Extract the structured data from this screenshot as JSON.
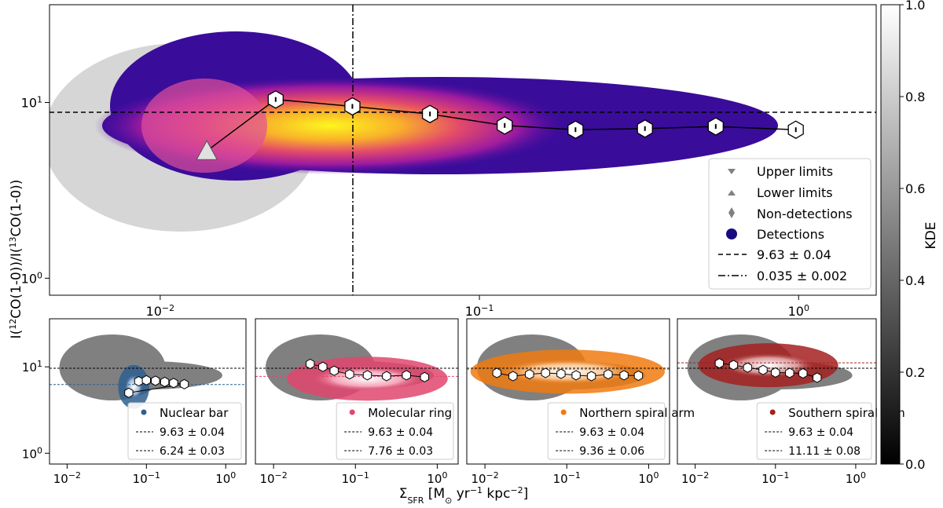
{
  "chart_data": [
    {
      "type": "scatter",
      "panel": "main",
      "xscale": "log",
      "yscale": "log",
      "xlim": [
        0.0045,
        1.75
      ],
      "ylim": [
        0.8,
        36
      ],
      "x_ticks": [
        {
          "v": 0.01,
          "label": "10^-2"
        },
        {
          "v": 0.1,
          "label": "10^-1"
        },
        {
          "v": 1,
          "label": "10^0"
        }
      ],
      "y_ticks": [
        {
          "v": 1,
          "label": "10^0"
        },
        {
          "v": 10,
          "label": "10^1"
        }
      ],
      "ylabel": "I(12CO(1-0))/I(13CO(1-0))",
      "hline": 9.63,
      "vline": 0.035,
      "binned_medians": [
        {
          "x": 0.014,
          "y": 5.3,
          "marker": "triangle"
        },
        {
          "x": 0.023,
          "y": 10.4
        },
        {
          "x": 0.04,
          "y": 9.5
        },
        {
          "x": 0.07,
          "y": 8.6
        },
        {
          "x": 0.12,
          "y": 7.4
        },
        {
          "x": 0.2,
          "y": 7.0
        },
        {
          "x": 0.33,
          "y": 7.1
        },
        {
          "x": 0.55,
          "y": 7.3
        },
        {
          "x": 0.98,
          "y": 7.0
        }
      ],
      "legend": {
        "position": "lower-right",
        "entries": [
          {
            "label": "Upper limits",
            "marker": "triangle-down",
            "color": "#808080"
          },
          {
            "label": "Lower limits",
            "marker": "triangle-up",
            "color": "#808080"
          },
          {
            "label": "Non-detections",
            "marker": "diamond",
            "color": "#808080"
          },
          {
            "label": "Detections",
            "marker": "circle",
            "color": "#1a0a82"
          },
          {
            "label": "9.63 ± 0.04",
            "line": "dashed"
          },
          {
            "label": "0.035 ± 0.002",
            "line": "dashdot"
          }
        ]
      }
    },
    {
      "type": "scatter",
      "panel": "sub",
      "region": "Nuclear bar",
      "color": "#2e5f90",
      "hline_global": 9.63,
      "hline_region": 6.24,
      "points": [
        [
          0.08,
          6.8
        ],
        [
          0.1,
          7.0
        ],
        [
          0.13,
          6.9
        ],
        [
          0.17,
          6.7
        ],
        [
          0.22,
          6.5
        ],
        [
          0.3,
          6.3
        ],
        [
          0.06,
          5.0
        ]
      ],
      "legend": [
        "Nuclear bar",
        "9.63 ± 0.04",
        "6.24 ± 0.03"
      ]
    },
    {
      "type": "scatter",
      "panel": "sub",
      "region": "Molecular ring",
      "color": "#e0476e",
      "hline_global": 9.63,
      "hline_region": 7.76,
      "points": [
        [
          0.028,
          10.8
        ],
        [
          0.04,
          10.0
        ],
        [
          0.055,
          9.0
        ],
        [
          0.085,
          8.2
        ],
        [
          0.14,
          8.0
        ],
        [
          0.24,
          7.8
        ],
        [
          0.42,
          8.0
        ],
        [
          0.7,
          7.6
        ]
      ],
      "legend": [
        "Molecular ring",
        "9.63 ± 0.04",
        "7.76 ± 0.03"
      ]
    },
    {
      "type": "scatter",
      "panel": "sub",
      "region": "Northern spiral arm",
      "color": "#f07a10",
      "hline_global": 9.63,
      "hline_region": 9.36,
      "points": [
        [
          0.014,
          8.5
        ],
        [
          0.022,
          7.8
        ],
        [
          0.035,
          8.2
        ],
        [
          0.055,
          8.5
        ],
        [
          0.085,
          8.3
        ],
        [
          0.13,
          8.0
        ],
        [
          0.2,
          7.8
        ],
        [
          0.32,
          8.2
        ],
        [
          0.5,
          8.0
        ],
        [
          0.75,
          7.9
        ]
      ],
      "legend": [
        "Northern spiral arm",
        "9.63 ± 0.04",
        "9.36 ± 0.06"
      ]
    },
    {
      "type": "scatter",
      "panel": "sub",
      "region": "Southern spiral arm",
      "color": "#a52020",
      "hline_global": 9.63,
      "hline_region": 11.11,
      "points": [
        [
          0.02,
          11.0
        ],
        [
          0.03,
          10.5
        ],
        [
          0.045,
          9.8
        ],
        [
          0.07,
          9.2
        ],
        [
          0.1,
          8.6
        ],
        [
          0.15,
          8.5
        ],
        [
          0.22,
          8.4
        ],
        [
          0.33,
          7.5
        ]
      ],
      "legend": [
        "Southern spiral arm",
        "9.63 ± 0.04",
        "11.11 ± 0.08"
      ]
    }
  ],
  "shared": {
    "xlabel": "ΣSFR [M⊙ yr−1 kpc−2]",
    "sub_x_ticks": [
      {
        "v": 0.01,
        "label": "10^-2"
      },
      {
        "v": 0.1,
        "label": "10^-1"
      },
      {
        "v": 1,
        "label": "10^0"
      }
    ],
    "sub_y_ticks": [
      {
        "v": 1,
        "label": "10^0"
      },
      {
        "v": 10,
        "label": "10^1"
      }
    ],
    "colorbar": {
      "label": "KDE",
      "ticks": [
        "0.0",
        "0.2",
        "0.4",
        "0.6",
        "0.8",
        "1.0"
      ]
    }
  }
}
